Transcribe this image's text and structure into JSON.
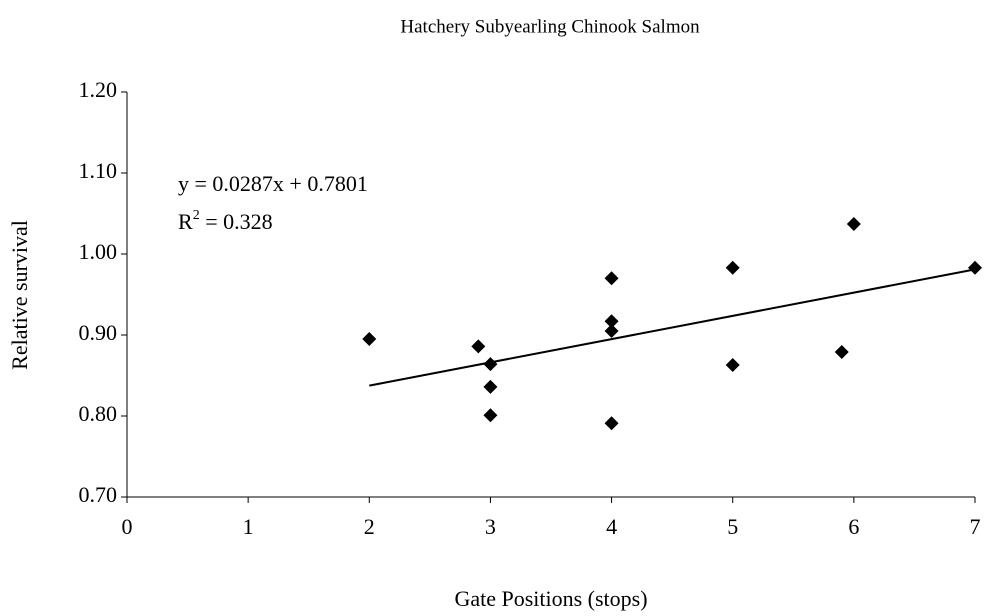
{
  "chart_data": {
    "type": "scatter",
    "title": "Hatchery Subyearling Chinook Salmon",
    "x_label": "Gate Positions (stops)",
    "y_label": "Relative survival",
    "equation": "y = 0.0287x + 0.7801",
    "r_squared": {
      "base": "R",
      "sup": "2",
      "text": " = 0.328"
    },
    "x": [
      2,
      2.9,
      3,
      3,
      3,
      4,
      4,
      4,
      4,
      5,
      5,
      5.9,
      6,
      7
    ],
    "values": [
      0.895,
      0.886,
      0.864,
      0.836,
      0.801,
      0.97,
      0.917,
      0.905,
      0.791,
      0.983,
      0.863,
      0.879,
      1.037,
      0.983
    ],
    "color": "#000000",
    "trendline": {
      "x": [
        2,
        7
      ],
      "values": [
        0.8375,
        0.981
      ],
      "color": "#000000"
    },
    "xlim": [
      0,
      7
    ],
    "ylim": [
      0.7,
      1.2
    ],
    "xticks": [
      0,
      1,
      2,
      3,
      4,
      5,
      6,
      7
    ],
    "yticks": [
      {
        "value": 0.7,
        "label": "0.70"
      },
      {
        "value": 0.8,
        "label": "0.80"
      },
      {
        "value": 0.9,
        "label": "0.90"
      },
      {
        "value": 1.0,
        "label": "1.00"
      },
      {
        "value": 1.1,
        "label": "1.10"
      },
      {
        "value": 1.2,
        "label": "1.20"
      }
    ],
    "grid": false
  }
}
